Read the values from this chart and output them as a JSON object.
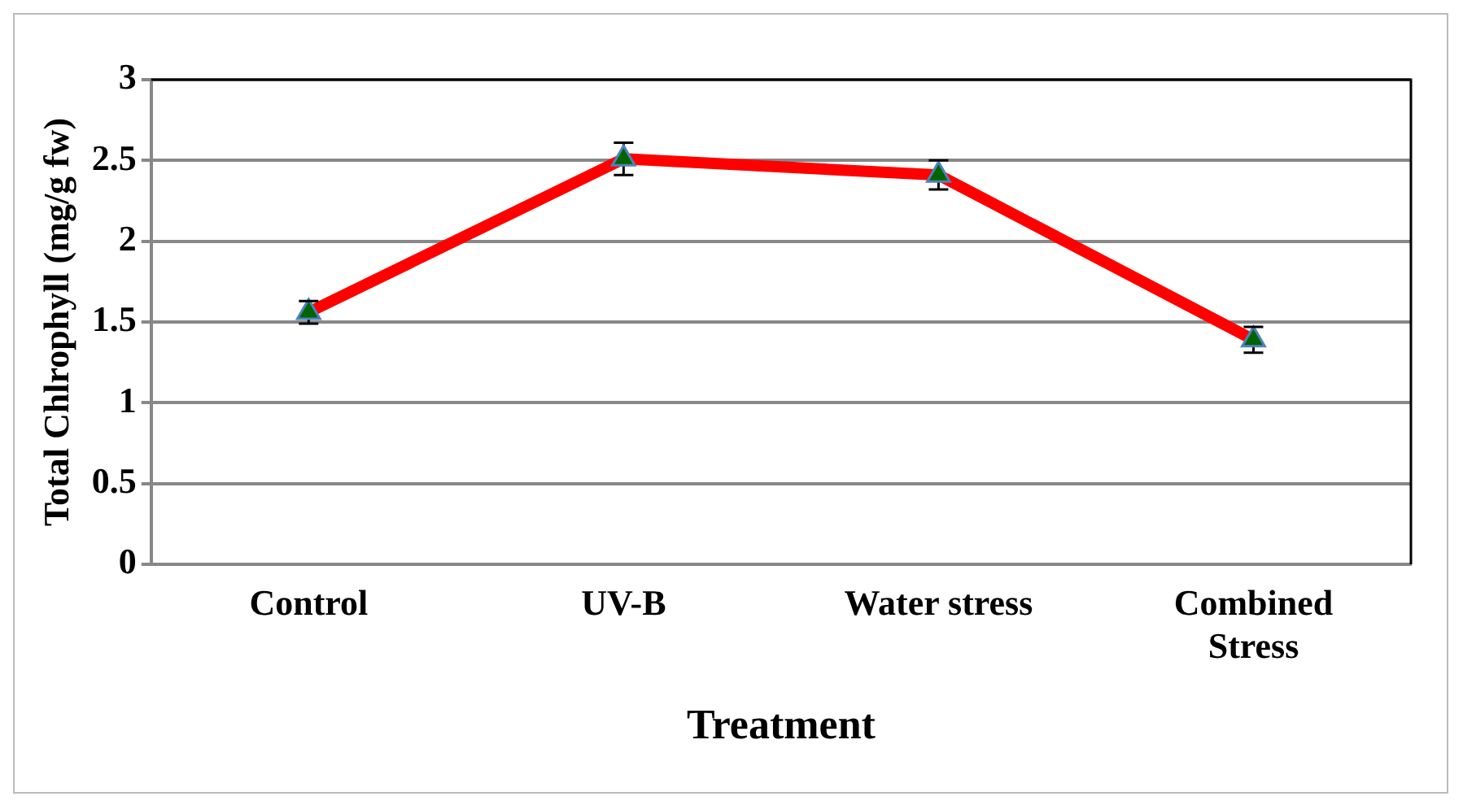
{
  "chart_data": {
    "type": "line",
    "xlabel": "Treatment",
    "ylabel": "Total Chlrophyll (mg/g fw)",
    "categories": [
      "Control",
      "UV-B",
      "Water stress",
      "Combined Stress"
    ],
    "series": [
      {
        "color": "#ff0000",
        "colors": [
          "#006400",
          "#006400",
          "#006400",
          "#006400"
        ],
        "values": [
          1.56,
          2.51,
          2.41,
          1.39
        ],
        "errors": [
          0.07,
          0.1,
          0.09,
          0.08
        ]
      }
    ],
    "ylim": [
      0,
      3
    ],
    "yticks": [
      0,
      0.5,
      1,
      1.5,
      2,
      2.5,
      3
    ],
    "grid": "y",
    "legend": false,
    "marker": "triangle",
    "line_style": "solid"
  }
}
